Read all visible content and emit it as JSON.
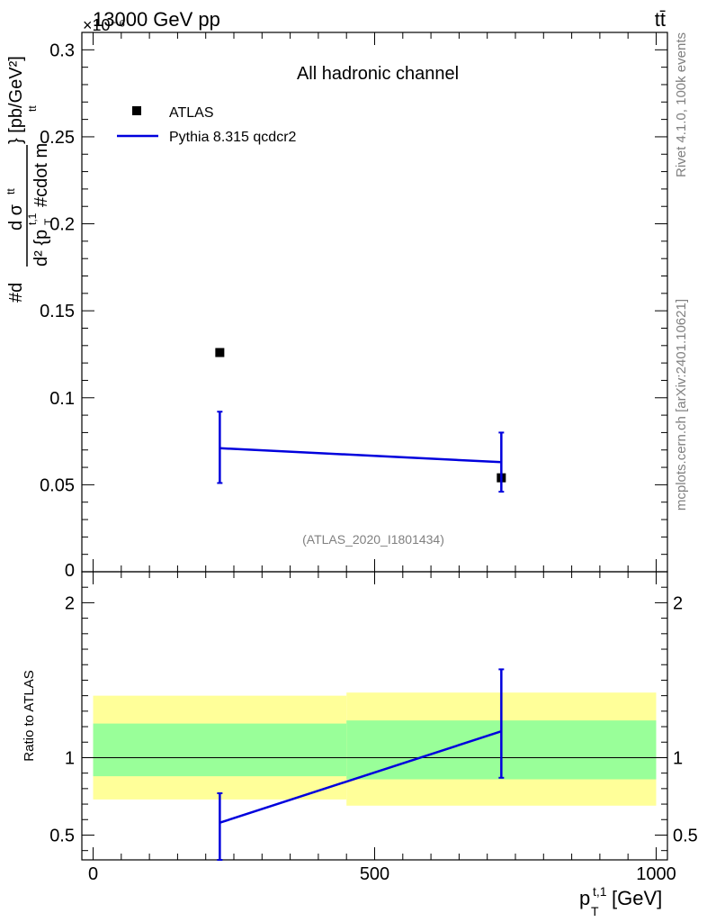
{
  "header": {
    "energy": "13000 GeV pp",
    "process": "tt̄",
    "exponent": "×10⁻⁶"
  },
  "side_labels": {
    "rivet": "Rivet 4.1.0,  100k events",
    "mcplots": "mcplots.cern.ch [arXiv:2401.10621]"
  },
  "colors": {
    "mc": "#0000dd",
    "data": "#000000",
    "band_outer": "#ffff99",
    "band_inner": "#99ff99",
    "ref_watermark": "#808080",
    "side_text": "#808080"
  },
  "chart_data": [
    {
      "type": "scatter",
      "panel": "main",
      "title": "All hadronic channel",
      "ylabel": "#d d²σ^{tt} / d²{p_T^{t,1} #cdot m^{tt}} [pb/GeV²]",
      "ylabel_parts": {
        "prefix": "#d",
        "numerator": "d σ",
        "numerator_sup": "tt",
        "denominator": "d² {p",
        "denominator_sub": "T",
        "denominator_sup": "t,1",
        "denominator_rest": " #cdot m",
        "denominator_rest_sup": "tt",
        "brace_unit": "} [pb/GeV²]"
      },
      "xlabel": "p_T^{t,1} [GeV]",
      "xlim": [
        -20,
        1020
      ],
      "ylim": [
        0,
        0.31
      ],
      "yticks": [
        0.05,
        0.1,
        0.15,
        0.2,
        0.25,
        0.3
      ],
      "ytick_labels": [
        "0.05",
        "0.1",
        "0.15",
        "0.2",
        "0.25",
        "0.3"
      ],
      "y_zero_label": "0",
      "watermark": "(ATLAS_2020_I1801434)",
      "legend": {
        "placement": "top-left",
        "entries": [
          {
            "name": "ATLAS",
            "marker": "square"
          },
          {
            "name": "Pythia 8.315 qcdcr2",
            "marker": "line"
          }
        ]
      },
      "series": [
        {
          "name": "ATLAS",
          "points": [
            {
              "x": 225,
              "y": 0.126
            },
            {
              "x": 725,
              "y": 0.054
            }
          ]
        },
        {
          "name": "Pythia 8.315 qcdcr2",
          "points": [
            {
              "x": 225,
              "y": 0.071,
              "yerr_low": 0.051,
              "yerr_high": 0.092
            },
            {
              "x": 725,
              "y": 0.063,
              "yerr_low": 0.046,
              "yerr_high": 0.08
            }
          ]
        }
      ]
    },
    {
      "type": "line",
      "panel": "ratio",
      "ylabel": "Ratio to ATLAS",
      "xlabel": "p_T^{t,1} [GeV]",
      "xlim": [
        -20,
        1020
      ],
      "ylim": [
        0.34,
        2.2
      ],
      "xticks": [
        0,
        500,
        1000
      ],
      "xtick_labels": [
        "0",
        "500",
        "1000"
      ],
      "yticks": [
        0.5,
        1,
        2
      ],
      "ytick_labels": [
        "0.5",
        "1",
        "2"
      ],
      "bands": [
        {
          "xmin": 0,
          "xmax": 450,
          "outer": [
            0.73,
            1.4
          ],
          "inner": [
            0.88,
            1.22
          ]
        },
        {
          "xmin": 450,
          "xmax": 1000,
          "outer": [
            0.69,
            1.42
          ],
          "inner": [
            0.86,
            1.24
          ]
        }
      ],
      "series": [
        {
          "name": "Pythia 8.315 qcdcr2",
          "points": [
            {
              "x": 225,
              "y": 0.58,
              "yerr_low": 0.34,
              "yerr_high": 0.77
            },
            {
              "x": 725,
              "y": 1.17,
              "yerr_low": 0.87,
              "yerr_high": 1.57
            }
          ]
        }
      ]
    }
  ]
}
